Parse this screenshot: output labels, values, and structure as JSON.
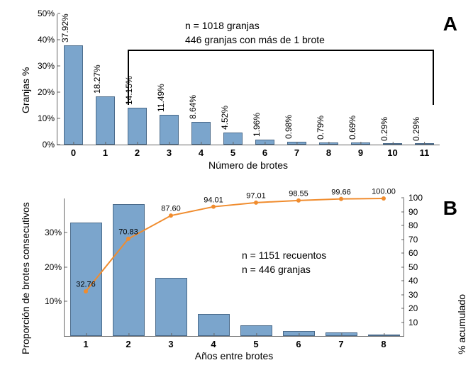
{
  "colors": {
    "bar_fill": "#7ba5cc",
    "bar_stroke": "#4a6a8a",
    "line": "#f08c2e",
    "axis": "#666666",
    "text": "#000000",
    "background": "#ffffff"
  },
  "fonts": {
    "axis_tick": 12,
    "axis_label": 14,
    "panel_letter": 28,
    "bar_label": 12,
    "annotation": 14
  },
  "panelA": {
    "letter": "A",
    "type": "bar",
    "categories": [
      "0",
      "1",
      "2",
      "3",
      "4",
      "5",
      "6",
      "7",
      "8",
      "9",
      "10",
      "11"
    ],
    "values": [
      37.92,
      18.27,
      14.15,
      11.49,
      8.64,
      4.52,
      1.96,
      0.98,
      0.79,
      0.69,
      0.29,
      0.29
    ],
    "bar_labels": [
      "37.92%",
      "18.27%",
      "14.15%",
      "11.49%",
      "8.64%",
      "4.52%",
      "1.96%",
      "0.98%",
      "0.79%",
      "0.69%",
      "0.29%",
      "0.29%"
    ],
    "ylim": [
      0,
      50
    ],
    "yticks": [
      0,
      10,
      20,
      30,
      40,
      50
    ],
    "ytick_labels": [
      "0%",
      "10%",
      "20%",
      "30%",
      "40%",
      "50%"
    ],
    "ylabel": "Granjas %",
    "xlabel": "Número de brotes",
    "bar_width": 0.62,
    "annot1": "n = 1018 granjas",
    "annot2": "446 granjas con más de 1 brote",
    "bracket_from": 2,
    "bracket_to": 11
  },
  "panelB": {
    "letter": "B",
    "type": "bar+line",
    "categories": [
      "1",
      "2",
      "3",
      "4",
      "5",
      "6",
      "7",
      "8"
    ],
    "bar_values": [
      32.8,
      38.1,
      16.8,
      6.4,
      3.0,
      1.5,
      1.1,
      0.3
    ],
    "line_values": [
      32.76,
      70.83,
      87.6,
      94.01,
      97.01,
      98.55,
      99.66,
      100.0
    ],
    "line_labels": [
      "32.76",
      "70.83",
      "87.60",
      "94.01",
      "97.01",
      "98.55",
      "99.66",
      "100.00"
    ],
    "ylim": [
      0,
      40
    ],
    "yticks": [
      10,
      20,
      30
    ],
    "ytick_labels": [
      "10%",
      "20%",
      "30%"
    ],
    "y2lim": [
      0,
      100
    ],
    "y2ticks": [
      10,
      20,
      30,
      40,
      50,
      60,
      70,
      80,
      90,
      100
    ],
    "ylabel": "Proporción de brotes consecutivos",
    "y2label": "% acumulado",
    "xlabel": "Años entre brotes",
    "bar_width": 0.75,
    "annot1": "n = 1151 recuentos",
    "annot2": "n = 446 granjas"
  }
}
